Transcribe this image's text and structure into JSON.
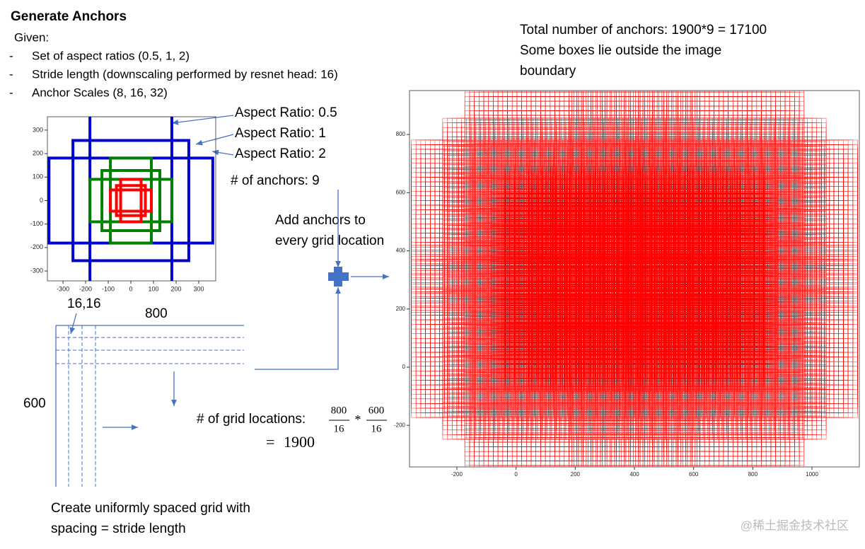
{
  "title": "Generate Anchors",
  "given": "Given:",
  "bullet_marker": "-",
  "bullets": [
    "Set of aspect ratios (0.5, 1, 2)",
    "Stride length (downscaling performed by resnet head: 16)",
    "Anchor Scales (8, 16, 32)"
  ],
  "anchor_labels": [
    "Aspect Ratio: 0.5",
    "Aspect Ratio: 1",
    "Aspect Ratio: 2"
  ],
  "anchor_count": "# of anchors: 9",
  "add_anchors": [
    "Add anchors to",
    "every grid location"
  ],
  "total": [
    "Total number of anchors: 1900*9 = 17100",
    "Some boxes lie outside the image",
    "boundary"
  ],
  "anchor_plot": {
    "xlim": [
      -369,
      375
    ],
    "ylim": [
      -342,
      357
    ],
    "xticks": [
      -300,
      -200,
      -100,
      0,
      100,
      200,
      300
    ],
    "yticks": [
      -300,
      -200,
      -100,
      0,
      100,
      200,
      300
    ],
    "boxes": [
      {
        "color": "#0000cc",
        "w": 362,
        "h": 724
      },
      {
        "color": "#0000cc",
        "w": 512,
        "h": 512
      },
      {
        "color": "#0000cc",
        "w": 724,
        "h": 362
      },
      {
        "color": "#008000",
        "w": 181,
        "h": 362
      },
      {
        "color": "#008000",
        "w": 256,
        "h": 256
      },
      {
        "color": "#008000",
        "w": 362,
        "h": 181
      },
      {
        "color": "#ff0000",
        "w": 90.5,
        "h": 181
      },
      {
        "color": "#ff0000",
        "w": 128,
        "h": 128
      },
      {
        "color": "#ff0000",
        "w": 181,
        "h": 90.5
      }
    ]
  },
  "grid_plot": {
    "xlim": [
      -360,
      1160
    ],
    "ylim": [
      -343,
      951
    ],
    "xticks": [
      -200,
      0,
      200,
      400,
      600,
      800,
      1000
    ],
    "yticks": [
      -200,
      0,
      200,
      400,
      600,
      800
    ],
    "color": "#ff0000"
  },
  "origin_label": "16,16",
  "grid_formula": {
    "label": "# of grid locations:",
    "width": 800,
    "height": 600,
    "stride": 16,
    "operator": "*",
    "equals": "=",
    "result": 1900
  },
  "caption": [
    "Create uniformly spaced grid with",
    "spacing = stride length"
  ],
  "watermark": "@稀土掘金技术社区"
}
